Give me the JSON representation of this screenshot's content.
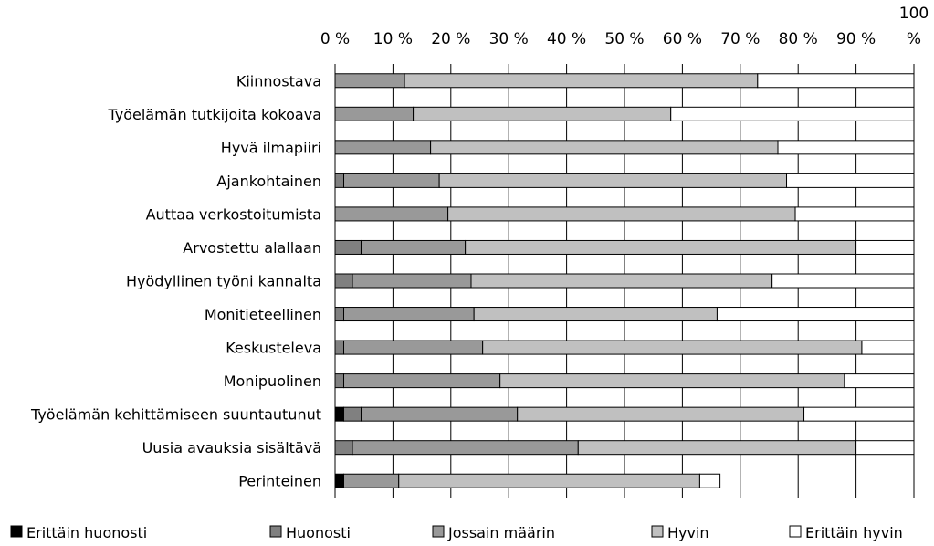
{
  "chart_data": {
    "type": "bar",
    "orientation": "horizontal",
    "stacked": true,
    "percent": true,
    "categories": [
      "Kiinnostava",
      "Työelämän tutkijoita kokoava",
      "Hyvä ilmapiiri",
      "Ajankohtainen",
      "Auttaa verkostoitumista",
      "Arvostettu alallaan",
      "Hyödyllinen työni kannalta",
      "Monitieteellinen",
      "Keskusteleva",
      "Monipuolinen",
      "Työelämän kehittämiseen suuntautunut",
      "Uusia avauksia sisältävä",
      "Perinteinen"
    ],
    "series": [
      {
        "name": "Erittäin huonosti",
        "color": "#000000",
        "values": [
          0,
          0,
          0,
          0,
          0,
          0,
          0,
          0,
          0,
          0,
          1.5,
          0,
          1.5
        ]
      },
      {
        "name": "Huonosti",
        "color": "#808080",
        "values": [
          0,
          0,
          0,
          1.5,
          0,
          4.5,
          3,
          1.5,
          1.5,
          1.5,
          3,
          3,
          0
        ]
      },
      {
        "name": "Jossain määrin",
        "color": "#999999",
        "values": [
          12,
          13.5,
          16.5,
          16.5,
          19.5,
          18,
          20.5,
          22.5,
          24,
          27,
          27,
          39,
          9.5
        ]
      },
      {
        "name": "Hyvin",
        "color": "#c0c0c0",
        "values": [
          61,
          44.5,
          60,
          60,
          60,
          67.5,
          52,
          42,
          65.5,
          59.5,
          49.5,
          48,
          52
        ]
      },
      {
        "name": "Erittäin hyvin",
        "color": "#ffffff",
        "values": [
          27,
          42,
          23.5,
          22,
          20.5,
          10,
          24.5,
          34,
          9,
          12,
          19,
          10,
          3.5
        ]
      }
    ],
    "xlim": [
      0,
      100
    ],
    "x_ticks": [
      "0 %",
      "10 %",
      "20 %",
      "30 %",
      "40 %",
      "50 %",
      "60 %",
      "70 %",
      "80 %",
      "90 %",
      "100 %"
    ],
    "grid": true,
    "legend_position": "bottom"
  }
}
